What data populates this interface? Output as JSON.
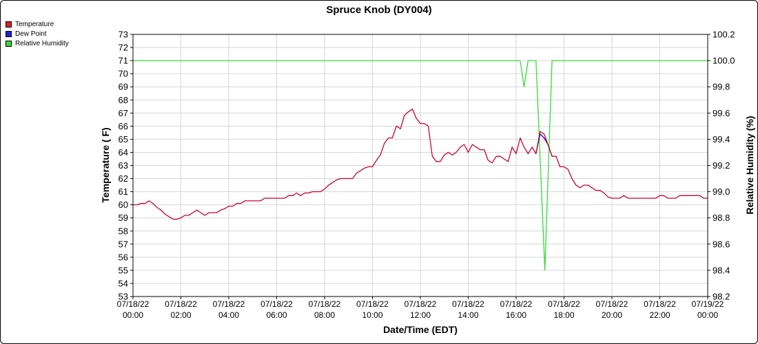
{
  "chart_data": {
    "type": "line",
    "title": "Spruce Knob (DY004)",
    "xlabel": "Date/Time (EDT)",
    "ylabel_left": "Temperature ( F)",
    "ylabel_right": "Relative Humidity (%)",
    "ylim_left": [
      53,
      73
    ],
    "ylim_right": [
      98.2,
      100.2
    ],
    "xlim_hours": [
      0,
      24
    ],
    "grid": true,
    "legend_placement": "top-left",
    "x_tick_labels": [
      {
        "date": "07/18/22",
        "time": "00:00"
      },
      {
        "date": "07/18/22",
        "time": "02:00"
      },
      {
        "date": "07/18/22",
        "time": "04:00"
      },
      {
        "date": "07/18/22",
        "time": "06:00"
      },
      {
        "date": "07/18/22",
        "time": "08:00"
      },
      {
        "date": "07/18/22",
        "time": "10:00"
      },
      {
        "date": "07/18/22",
        "time": "12:00"
      },
      {
        "date": "07/18/22",
        "time": "14:00"
      },
      {
        "date": "07/18/22",
        "time": "16:00"
      },
      {
        "date": "07/18/22",
        "time": "18:00"
      },
      {
        "date": "07/18/22",
        "time": "20:00"
      },
      {
        "date": "07/18/22",
        "time": "22:00"
      },
      {
        "date": "07/19/22",
        "time": "00:00"
      }
    ],
    "y_left_ticks": [
      "53",
      "54",
      "55",
      "56",
      "57",
      "58",
      "59",
      "60",
      "61",
      "62",
      "63",
      "64",
      "65",
      "66",
      "67",
      "68",
      "69",
      "70",
      "71",
      "72",
      "73"
    ],
    "y_right_ticks": [
      "98.2",
      "98.4",
      "98.6",
      "98.8",
      "99.0",
      "99.2",
      "99.4",
      "99.6",
      "99.8",
      "100.0",
      "100.2"
    ],
    "series": [
      {
        "name": "Temperature",
        "color": "#cc0033",
        "axis": "left",
        "points": [
          [
            0,
            60
          ],
          [
            0.17,
            60
          ],
          [
            0.33,
            60.1
          ],
          [
            0.5,
            60.1
          ],
          [
            0.67,
            60.3
          ],
          [
            0.83,
            60.1
          ],
          [
            1,
            59.8
          ],
          [
            1.17,
            59.6
          ],
          [
            1.33,
            59.3
          ],
          [
            1.5,
            59.1
          ],
          [
            1.67,
            58.9
          ],
          [
            1.83,
            58.9
          ],
          [
            2,
            59
          ],
          [
            2.17,
            59.2
          ],
          [
            2.33,
            59.2
          ],
          [
            2.5,
            59.4
          ],
          [
            2.67,
            59.6
          ],
          [
            2.83,
            59.4
          ],
          [
            3,
            59.2
          ],
          [
            3.17,
            59.4
          ],
          [
            3.33,
            59.4
          ],
          [
            3.5,
            59.4
          ],
          [
            3.67,
            59.6
          ],
          [
            3.83,
            59.7
          ],
          [
            4,
            59.9
          ],
          [
            4.17,
            59.9
          ],
          [
            4.33,
            60.1
          ],
          [
            4.5,
            60.1
          ],
          [
            4.67,
            60.3
          ],
          [
            4.83,
            60.3
          ],
          [
            5,
            60.3
          ],
          [
            5.17,
            60.3
          ],
          [
            5.33,
            60.3
          ],
          [
            5.5,
            60.5
          ],
          [
            5.67,
            60.5
          ],
          [
            5.83,
            60.5
          ],
          [
            6,
            60.5
          ],
          [
            6.17,
            60.5
          ],
          [
            6.33,
            60.5
          ],
          [
            6.5,
            60.7
          ],
          [
            6.67,
            60.7
          ],
          [
            6.83,
            60.9
          ],
          [
            7,
            60.7
          ],
          [
            7.17,
            60.9
          ],
          [
            7.33,
            60.9
          ],
          [
            7.5,
            61
          ],
          [
            7.67,
            61
          ],
          [
            7.83,
            61
          ],
          [
            8,
            61.2
          ],
          [
            8.17,
            61.5
          ],
          [
            8.33,
            61.7
          ],
          [
            8.5,
            61.9
          ],
          [
            8.67,
            62
          ],
          [
            8.83,
            62
          ],
          [
            9,
            62
          ],
          [
            9.17,
            62
          ],
          [
            9.33,
            62.4
          ],
          [
            9.5,
            62.6
          ],
          [
            9.67,
            62.8
          ],
          [
            9.83,
            62.9
          ],
          [
            10,
            62.9
          ],
          [
            10.17,
            63.4
          ],
          [
            10.33,
            63.8
          ],
          [
            10.5,
            64.7
          ],
          [
            10.67,
            65.1
          ],
          [
            10.83,
            65.1
          ],
          [
            11,
            66
          ],
          [
            11.17,
            65.8
          ],
          [
            11.33,
            66.8
          ],
          [
            11.5,
            67.1
          ],
          [
            11.67,
            67.3
          ],
          [
            11.83,
            66.6
          ],
          [
            12,
            66.2
          ],
          [
            12.17,
            66.2
          ],
          [
            12.33,
            66
          ],
          [
            12.5,
            63.7
          ],
          [
            12.67,
            63.3
          ],
          [
            12.83,
            63.3
          ],
          [
            13,
            63.8
          ],
          [
            13.17,
            64
          ],
          [
            13.33,
            63.8
          ],
          [
            13.5,
            64
          ],
          [
            13.67,
            64.4
          ],
          [
            13.83,
            64.6
          ],
          [
            14,
            64
          ],
          [
            14.17,
            64.6
          ],
          [
            14.33,
            64.4
          ],
          [
            14.5,
            64.2
          ],
          [
            14.67,
            64.2
          ],
          [
            14.83,
            63.4
          ],
          [
            15,
            63.2
          ],
          [
            15.17,
            63.7
          ],
          [
            15.33,
            63.7
          ],
          [
            15.5,
            63.5
          ],
          [
            15.67,
            63.3
          ],
          [
            15.83,
            64.4
          ],
          [
            16,
            63.9
          ],
          [
            16.17,
            65.1
          ],
          [
            16.33,
            64.4
          ],
          [
            16.5,
            63.9
          ],
          [
            16.67,
            64.4
          ],
          [
            16.83,
            63.9
          ],
          [
            17,
            65.6
          ],
          [
            17.17,
            65.4
          ],
          [
            17.33,
            64.6
          ],
          [
            17.5,
            63.7
          ],
          [
            17.67,
            63.7
          ],
          [
            17.83,
            62.9
          ],
          [
            18,
            62.9
          ],
          [
            18.17,
            62.7
          ],
          [
            18.33,
            62
          ],
          [
            18.5,
            61.5
          ],
          [
            18.67,
            61.3
          ],
          [
            18.83,
            61.5
          ],
          [
            19,
            61.5
          ],
          [
            19.17,
            61.3
          ],
          [
            19.33,
            61.1
          ],
          [
            19.5,
            61.1
          ],
          [
            19.67,
            60.9
          ],
          [
            19.83,
            60.6
          ],
          [
            20,
            60.5
          ],
          [
            20.17,
            60.5
          ],
          [
            20.33,
            60.5
          ],
          [
            20.5,
            60.7
          ],
          [
            20.67,
            60.5
          ],
          [
            20.83,
            60.5
          ],
          [
            21,
            60.5
          ],
          [
            21.17,
            60.5
          ],
          [
            21.33,
            60.5
          ],
          [
            21.5,
            60.5
          ],
          [
            21.67,
            60.5
          ],
          [
            21.83,
            60.5
          ],
          [
            22,
            60.7
          ],
          [
            22.17,
            60.7
          ],
          [
            22.33,
            60.5
          ],
          [
            22.5,
            60.5
          ],
          [
            22.67,
            60.5
          ],
          [
            22.83,
            60.7
          ],
          [
            23,
            60.7
          ],
          [
            23.17,
            60.7
          ],
          [
            23.33,
            60.7
          ],
          [
            23.5,
            60.7
          ],
          [
            23.67,
            60.7
          ],
          [
            23.83,
            60.5
          ],
          [
            24,
            60.5
          ]
        ]
      },
      {
        "name": "Dew Point",
        "color": "#0000cc",
        "axis": "left",
        "points": [
          [
            16.83,
            63.9
          ],
          [
            17,
            65.4
          ],
          [
            17.17,
            65.1
          ],
          [
            17.33,
            64.6
          ],
          [
            17.5,
            63.7
          ]
        ]
      },
      {
        "name": "Relative Humidity",
        "color": "#33dd33",
        "axis": "right",
        "points": [
          [
            0,
            100
          ],
          [
            16.17,
            100
          ],
          [
            16.33,
            99.8
          ],
          [
            16.5,
            100
          ],
          [
            16.83,
            100
          ],
          [
            17.2,
            98.4
          ],
          [
            17.5,
            100
          ],
          [
            24,
            100
          ]
        ]
      }
    ]
  }
}
